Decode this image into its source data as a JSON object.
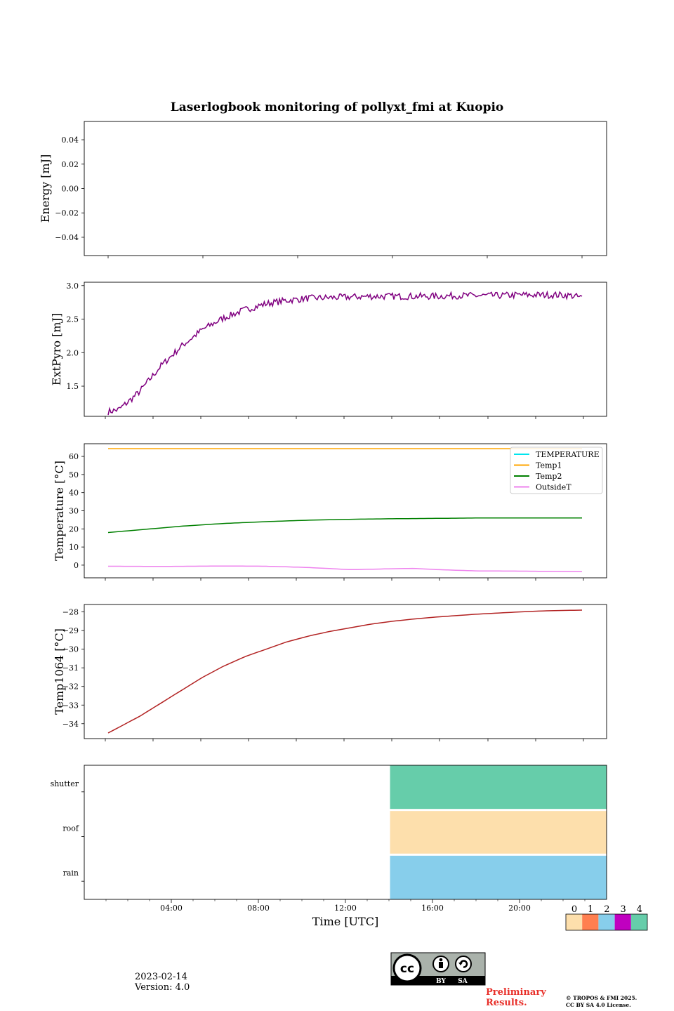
{
  "title": "Laserlogbook monitoring of pollyxt_fmi at Kuopio",
  "chart_data": [
    {
      "id": "energy",
      "type": "line",
      "ylabel": "Energy [mJ]",
      "ylim": [
        -0.055,
        0.055
      ],
      "yticks": [
        0.04,
        0.02,
        0.0,
        -0.02,
        -0.04
      ],
      "ytick_labels": [
        "0.04",
        "0.02",
        "0.00",
        "−0.02",
        "−0.04"
      ],
      "series": []
    },
    {
      "id": "extpyro",
      "type": "line",
      "ylabel": "ExtPyro [mJ]",
      "ylim": [
        1.05,
        3.05
      ],
      "yticks": [
        3.0,
        2.5,
        2.0,
        1.5
      ],
      "ytick_labels": [
        "3.0",
        "2.5",
        "2.0",
        "1.5"
      ],
      "series": [
        {
          "name": "ExtPyro",
          "color": "#800080",
          "noise": 0.05,
          "x": [
            0.5,
            1,
            1.5,
            2,
            3,
            4,
            5,
            6,
            7,
            8,
            9,
            10,
            11,
            12,
            13,
            14,
            15,
            16,
            17,
            18,
            19,
            20,
            21,
            22,
            22.5,
            23
          ],
          "y": [
            1.12,
            1.15,
            1.28,
            1.42,
            1.8,
            2.1,
            2.35,
            2.52,
            2.64,
            2.73,
            2.78,
            2.81,
            2.82,
            2.83,
            2.84,
            2.84,
            2.84,
            2.84,
            2.85,
            2.85,
            2.85,
            2.86,
            2.86,
            2.86,
            2.85,
            2.82
          ]
        }
      ]
    },
    {
      "id": "temperature",
      "type": "line",
      "ylabel": "Temperature [°C]",
      "ylim": [
        -7,
        67
      ],
      "yticks": [
        60,
        50,
        40,
        30,
        20,
        10,
        0
      ],
      "ytick_labels": [
        "60",
        "50",
        "40",
        "30",
        "20",
        "10",
        "0"
      ],
      "legend": "top-right",
      "series": [
        {
          "name": "TEMPERATURE",
          "color": "#00e5ee",
          "x": [],
          "y": []
        },
        {
          "name": "Temp1",
          "color": "#ffa500",
          "x": [
            0.5,
            23
          ],
          "y": [
            64.3,
            64.3
          ]
        },
        {
          "name": "Temp2",
          "color": "#008000",
          "x": [
            0.5,
            2,
            4,
            6,
            8,
            10,
            12,
            14,
            16,
            18,
            20,
            23
          ],
          "y": [
            18,
            19.5,
            21.5,
            23,
            24,
            24.8,
            25.3,
            25.6,
            25.8,
            26,
            26,
            26
          ]
        },
        {
          "name": "OutsideT",
          "color": "#ee82ee",
          "x": [
            0.5,
            3,
            6,
            8,
            10,
            12,
            14,
            15,
            16,
            18,
            20,
            22,
            23
          ],
          "y": [
            -0.6,
            -0.7,
            -0.5,
            -0.6,
            -1.3,
            -2.5,
            -2.0,
            -1.8,
            -2.4,
            -3.2,
            -3.3,
            -3.5,
            -3.6
          ]
        }
      ]
    },
    {
      "id": "temp1064",
      "type": "line",
      "ylabel": "Temp1064 [°C]",
      "ylim": [
        -34.8,
        -27.6
      ],
      "yticks": [
        -28,
        -29,
        -30,
        -31,
        -32,
        -33,
        -34
      ],
      "ytick_labels": [
        "−28",
        "−29",
        "−30",
        "−31",
        "−32",
        "−33",
        "−34"
      ],
      "series": [
        {
          "name": "Temp1064",
          "color": "#b22222",
          "x": [
            0.5,
            1,
            2,
            3,
            4,
            5,
            6,
            7,
            8,
            9,
            10,
            11,
            12,
            13,
            14,
            15,
            16,
            17,
            18,
            19,
            20,
            21,
            22,
            23
          ],
          "y": [
            -34.5,
            -34.2,
            -33.6,
            -32.9,
            -32.2,
            -31.5,
            -30.9,
            -30.4,
            -30.0,
            -29.6,
            -29.3,
            -29.05,
            -28.85,
            -28.65,
            -28.5,
            -28.38,
            -28.28,
            -28.2,
            -28.12,
            -28.06,
            -28.0,
            -27.95,
            -27.92,
            -27.9
          ]
        }
      ]
    },
    {
      "id": "status",
      "type": "heatmap",
      "xlabel": "Time [UTC]",
      "xlim": [
        0,
        24
      ],
      "xticks": [
        4,
        8,
        12,
        16,
        20
      ],
      "xtick_labels": [
        "04:00",
        "08:00",
        "12:00",
        "16:00",
        "20:00"
      ],
      "rows": [
        "shutter",
        "roof",
        "rain"
      ],
      "blocks": [
        {
          "row": "shutter",
          "x_start": 14.05,
          "x_end": 24,
          "value": 4
        },
        {
          "row": "roof",
          "x_start": 14.05,
          "x_end": 24,
          "value": 0
        },
        {
          "row": "rain",
          "x_start": 14.05,
          "x_end": 24,
          "value": 2
        }
      ],
      "colorbar": {
        "labels": [
          "0",
          "1",
          "2",
          "3",
          "4"
        ],
        "colors": [
          "#fddfac",
          "#ff7f50",
          "#87ceeb",
          "#c000c0",
          "#66cdaa"
        ]
      }
    }
  ],
  "footer": {
    "date": "2023-02-14",
    "version": "Version: 4.0",
    "preliminary_line1": "Preliminary",
    "preliminary_line2": "Results.",
    "copyright_line1": "© TROPOS & FMI 2025.",
    "copyright_line2": "CC BY SA 4.0 License.",
    "license_by": "BY",
    "license_sa": "SA"
  }
}
